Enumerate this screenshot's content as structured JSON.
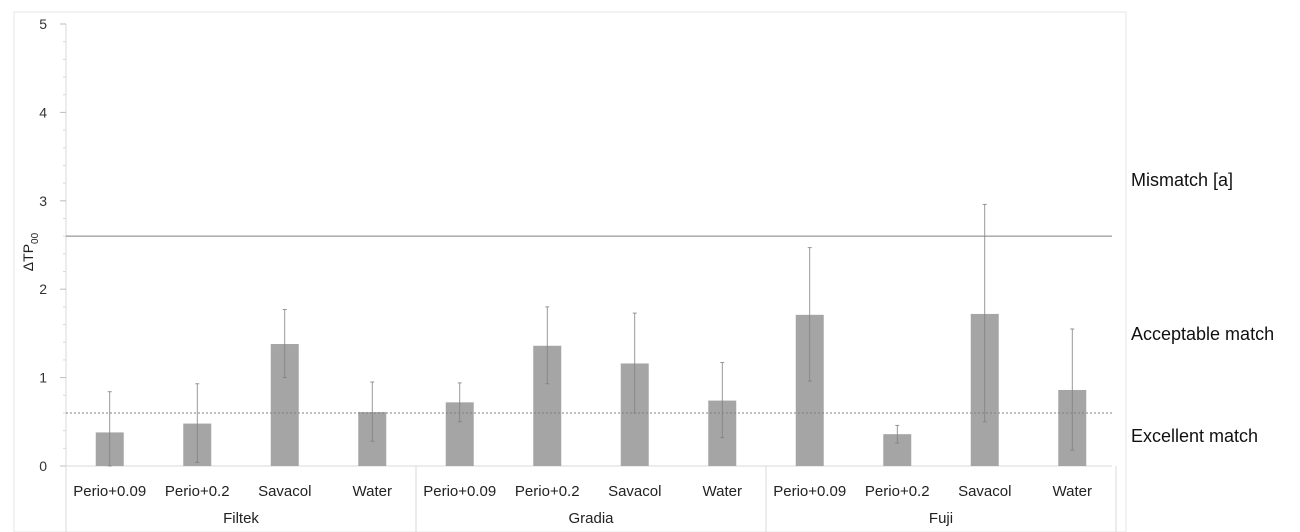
{
  "chart_data": {
    "type": "bar",
    "ylabel": "ΔTP",
    "ylabel_subscript": "00",
    "ylim": [
      0,
      5
    ],
    "yticks": [
      0,
      1,
      2,
      3,
      4,
      5
    ],
    "groups": [
      "Filtek",
      "Gradia",
      "Fuji"
    ],
    "categories": [
      "Perio+0.09",
      "Perio+0.2",
      "Savacol",
      "Water",
      "Perio+0.09",
      "Perio+0.2",
      "Savacol",
      "Water",
      "Perio+0.09",
      "Perio+0.2",
      "Savacol",
      "Water"
    ],
    "values": [
      0.38,
      0.48,
      1.38,
      0.61,
      0.72,
      1.36,
      1.16,
      0.74,
      1.71,
      0.36,
      1.72,
      0.86
    ],
    "error_low": [
      0.0,
      0.04,
      1.0,
      0.28,
      0.5,
      0.93,
      0.6,
      0.32,
      0.96,
      0.26,
      0.5,
      0.18
    ],
    "error_high": [
      0.84,
      0.93,
      1.77,
      0.95,
      0.94,
      1.8,
      1.73,
      1.17,
      2.47,
      0.46,
      2.96,
      1.55
    ],
    "thresholds": [
      {
        "value": 2.6,
        "style": "solid"
      },
      {
        "value": 0.6,
        "style": "dotted"
      }
    ],
    "annotations": [
      {
        "label": "Mismatch [a]"
      },
      {
        "label": "Acceptable match"
      },
      {
        "label": "Excellent match"
      }
    ],
    "colors": {
      "bar": "#a5a5a5",
      "error": "#7f7f7f",
      "threshold": "#7f7f7f",
      "frame": "#e6e6e6"
    },
    "grid": false
  }
}
